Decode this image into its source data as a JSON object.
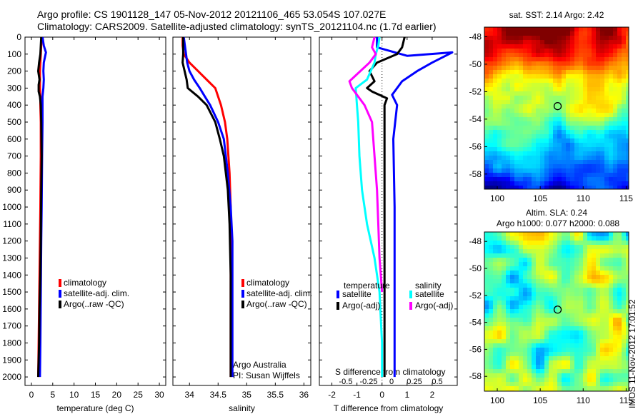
{
  "header": {
    "line1": "Argo profile: CS 1901128_147 05-Nov-2012 20121106_465 53.054S 107.027E",
    "line2": "Climatology: CARS2009. Satellite-adjusted climatology: synTS_20121104.nc (1.7d earlier)"
  },
  "stamp": "IMOS 11-Nov-2012 17:01:52",
  "colors": {
    "red": "#ff0000",
    "blue": "#0000ff",
    "black": "#000000",
    "cyan": "#00ffff",
    "magenta": "#ff00ff"
  },
  "depth_axis": {
    "range": [
      0,
      2050
    ],
    "ticks": [
      0,
      100,
      200,
      300,
      400,
      500,
      600,
      700,
      800,
      900,
      1000,
      1100,
      1200,
      1300,
      1400,
      1500,
      1600,
      1700,
      1800,
      1900,
      2000
    ]
  },
  "chart_data": [
    {
      "type": "line",
      "xlabel": "temperature (deg C)",
      "xlim": [
        -1.5,
        31.5
      ],
      "xticks": [
        0,
        5,
        10,
        15,
        20,
        25,
        30
      ],
      "ylim": [
        0,
        2050
      ],
      "y_reversed": true,
      "legend": {
        "placement": "lower-middle",
        "items": [
          "climatology",
          "satellite-adj. clim.",
          "Argo(..raw -QC)"
        ]
      },
      "series": [
        {
          "name": "climatology",
          "color": "red",
          "x": [
            2.4,
            2.3,
            2.2,
            2.1,
            2.0,
            2.0,
            2.0,
            2.1,
            2.1,
            2.2,
            2.2,
            2.1,
            2.0,
            1.9,
            1.8,
            1.7,
            1.6
          ],
          "y": [
            0,
            50,
            100,
            150,
            200,
            250,
            300,
            350,
            400,
            500,
            700,
            1000,
            1200,
            1400,
            1600,
            1800,
            2000
          ]
        },
        {
          "name": "satellite-adj. clim.",
          "color": "blue",
          "x": [
            2.6,
            2.9,
            3.4,
            2.9,
            2.8,
            2.9,
            2.8,
            2.6,
            2.6,
            2.6,
            2.5,
            2.4,
            2.3,
            2.2,
            2.1,
            2.0
          ],
          "y": [
            0,
            50,
            90,
            150,
            200,
            250,
            300,
            350,
            400,
            500,
            700,
            1000,
            1200,
            1500,
            1800,
            2000
          ]
        },
        {
          "name": "Argo(..raw -QC)",
          "color": "black",
          "x": [
            2.3,
            2.2,
            2.1,
            1.8,
            1.6,
            1.9,
            1.7,
            1.7,
            2.0,
            2.2,
            2.3,
            2.4,
            2.3,
            2.2,
            2.1,
            1.9,
            1.8,
            1.6
          ],
          "y": [
            0,
            50,
            100,
            150,
            200,
            250,
            280,
            320,
            350,
            400,
            500,
            700,
            900,
            1200,
            1400,
            1600,
            1800,
            2000
          ]
        }
      ]
    },
    {
      "type": "line",
      "xlabel": "salinity",
      "xlim": [
        33.71,
        36.12
      ],
      "xticks": [
        34,
        34.5,
        35,
        35.5,
        36
      ],
      "ylim": [
        0,
        2050
      ],
      "y_reversed": true,
      "legend": {
        "placement": "lower-right",
        "items": [
          "climatology",
          "satellite-adj. clim.",
          "Argo(..raw -QC)"
        ]
      },
      "annotation": [
        "Argo Australia",
        "PI: Susan Wijffels"
      ],
      "series": [
        {
          "name": "climatology",
          "color": "red",
          "x": [
            33.88,
            33.88,
            33.9,
            34.0,
            34.15,
            34.3,
            34.45,
            34.55,
            34.62,
            34.66,
            34.7,
            34.72,
            34.72,
            34.72,
            34.72,
            34.72
          ],
          "y": [
            0,
            50,
            100,
            150,
            200,
            250,
            300,
            400,
            500,
            600,
            800,
            1000,
            1200,
            1500,
            1800,
            2000
          ]
        },
        {
          "name": "satellite-adj. clim.",
          "color": "blue",
          "x": [
            33.9,
            33.92,
            33.94,
            33.96,
            34.0,
            34.08,
            34.18,
            34.27,
            34.36,
            34.5,
            34.6,
            34.67,
            34.72,
            34.75,
            34.75,
            34.75,
            34.75
          ],
          "y": [
            0,
            50,
            100,
            150,
            200,
            250,
            300,
            350,
            400,
            500,
            600,
            800,
            1000,
            1200,
            1500,
            1800,
            2000
          ]
        },
        {
          "name": "Argo(..raw -QC)",
          "color": "black",
          "x": [
            33.89,
            33.89,
            33.89,
            33.88,
            33.95,
            33.97,
            34.15,
            34.3,
            34.45,
            34.53,
            34.6,
            34.67,
            34.7,
            34.72,
            34.72
          ],
          "y": [
            0,
            50,
            100,
            150,
            250,
            300,
            350,
            400,
            500,
            600,
            700,
            900,
            1100,
            1400,
            2000
          ]
        }
      ]
    },
    {
      "type": "line",
      "xlabel": "T difference from climatology",
      "xlabel_top": "S difference from climatology",
      "xlim": [
        -2.5,
        3.0
      ],
      "xticks": [
        -2,
        -1,
        0,
        1,
        2
      ],
      "xticks_top": [
        -0.5,
        -0.25,
        0,
        0.25,
        0.5
      ],
      "xtick_labels_top": [
        "-0.5",
        "-0.25",
        "0",
        "0.25",
        "0.5"
      ],
      "ylim": [
        0,
        2050
      ],
      "y_reversed": true,
      "legend": {
        "placement": "lower",
        "temperature_title": "temperature",
        "salinity_title": "salinity",
        "items": [
          "satellite",
          "Argo(-adj)",
          "satellite",
          "Argo(-adj)"
        ]
      },
      "series": [
        {
          "name": "satellite",
          "group": "temperature",
          "color": "blue",
          "x": [
            -0.2,
            -0.2,
            1.0,
            2.8,
            2.0,
            1.4,
            0.8,
            0.4,
            0.6,
            0.45,
            0.5,
            0.5,
            0.5,
            0.5
          ],
          "y": [
            0,
            60,
            110,
            90,
            150,
            200,
            260,
            340,
            400,
            600,
            1000,
            1400,
            1800,
            2000
          ]
        },
        {
          "name": "Argo(-adj)",
          "group": "temperature",
          "color": "black",
          "x": [
            0.9,
            0.8,
            0.6,
            -0.2,
            -0.5,
            -0.3,
            -0.6,
            -0.4,
            0.2,
            0.1,
            0.1,
            0.1,
            0.1,
            0.1,
            0.1
          ],
          "y": [
            0,
            60,
            100,
            150,
            200,
            260,
            300,
            320,
            360,
            400,
            600,
            1000,
            1400,
            1800,
            2000
          ]
        },
        {
          "name": "satellite",
          "group": "salinity",
          "color": "cyan",
          "x": [
            -0.1,
            -0.15,
            -0.25,
            -0.3,
            -0.45,
            -0.6,
            -1.05,
            -1.0,
            -0.95,
            -0.9,
            -0.8,
            -0.6,
            -0.3,
            -0.1,
            0.0,
            0.0
          ],
          "y": [
            0,
            50,
            100,
            150,
            200,
            250,
            300,
            400,
            500,
            700,
            900,
            1100,
            1300,
            1500,
            1800,
            2000
          ]
        },
        {
          "name": "Argo(-adj)",
          "group": "salinity",
          "color": "magenta",
          "x": [
            -0.3,
            -0.4,
            -0.25,
            -0.5,
            -1.3,
            -1.2,
            -0.7,
            -0.4,
            -0.3,
            -0.2,
            -0.15,
            -0.1,
            -0.05,
            0.0
          ],
          "y": [
            0,
            60,
            100,
            150,
            260,
            300,
            400,
            500,
            700,
            900,
            1100,
            1300,
            1400,
            1500
          ]
        }
      ]
    },
    {
      "type": "heatmap",
      "title": "sat. SST: 2.14  Argo: 2.42",
      "xlim": [
        98.5,
        115.3
      ],
      "ylim": [
        -59.1,
        -47.3
      ],
      "xticks": [
        100,
        105,
        110,
        115
      ],
      "yticks": [
        -48,
        -50,
        -52,
        -54,
        -56,
        -58
      ],
      "marker": {
        "lon": 107.027,
        "lat": -53.054
      }
    },
    {
      "type": "heatmap",
      "title": "Altim. SLA: 0.24",
      "subtitle": "Argo h1000: 0.077 h2000: 0.088",
      "xlim": [
        98.5,
        115.3
      ],
      "ylim": [
        -59.1,
        -47.3
      ],
      "xticks": [
        100,
        105,
        110,
        115
      ],
      "yticks": [
        -48,
        -50,
        -52,
        -54,
        -56,
        -58
      ],
      "marker": {
        "lon": 107.027,
        "lat": -53.054
      }
    }
  ]
}
